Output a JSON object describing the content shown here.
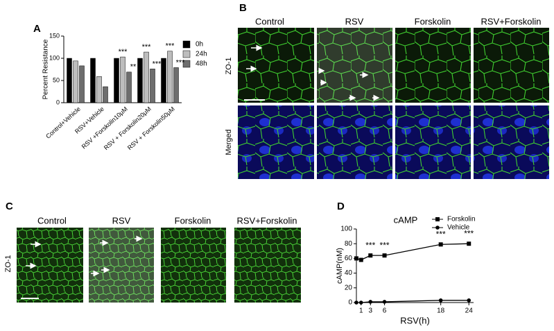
{
  "panels": {
    "a": "A",
    "b": "B",
    "c": "C",
    "d": "D"
  },
  "panel_b": {
    "columns": [
      "Control",
      "RSV",
      "Forskolin",
      "RSV+Forskolin"
    ],
    "rows": [
      "ZO-1",
      "Merged"
    ]
  },
  "panel_c": {
    "columns": [
      "Control",
      "RSV",
      "Forskolin",
      "RSV+Forskolin"
    ],
    "row": "ZO-1"
  },
  "chart_data": [
    {
      "type": "bar",
      "y_label": "Percent Resistance",
      "categories": [
        "Control+Vehicle",
        "RSV+Vehicle",
        "RSV +Forskolin10μM",
        "RSV + Forskolin20μM",
        "RSV + Forskolin50μM"
      ],
      "series": [
        {
          "name": "0h",
          "color": "#000000",
          "values": [
            100,
            100,
            100,
            100,
            100
          ]
        },
        {
          "name": "24h",
          "color": "#bdbdbd",
          "values": [
            94,
            59,
            103,
            114,
            116
          ]
        },
        {
          "name": "48h",
          "color": "#6e6e6e",
          "values": [
            83,
            36,
            69,
            76,
            79
          ]
        }
      ],
      "annotations": [
        {
          "text": "***",
          "category": "RSV +Forskolin10μM",
          "series": "24h"
        },
        {
          "text": "**",
          "category": "RSV +Forskolin10μM",
          "series": "48h"
        },
        {
          "text": "***",
          "category": "RSV + Forskolin20μM",
          "series": "24h"
        },
        {
          "text": "***",
          "category": "RSV + Forskolin20μM",
          "series": "48h"
        },
        {
          "text": "***",
          "category": "RSV + Forskolin50μM",
          "series": "24h"
        },
        {
          "text": "***",
          "category": "RSV + Forskolin50μM",
          "series": "48h"
        }
      ],
      "ylim": [
        0,
        150
      ],
      "yticks": [
        0,
        50,
        100,
        150
      ],
      "legend": "right"
    },
    {
      "type": "line",
      "title": "cAMP",
      "x_label": "RSV(h)",
      "y_label": "cAMP(nM)",
      "x": [
        0,
        1,
        3,
        6,
        18,
        24
      ],
      "series": [
        {
          "name": "Forskolin",
          "color": "#000000",
          "marker": "square",
          "values": [
            60,
            58,
            64,
            64,
            79,
            80
          ]
        },
        {
          "name": "Vehicle",
          "color": "#000000",
          "marker": "circle",
          "values": [
            0,
            0,
            1,
            1,
            3,
            3
          ]
        }
      ],
      "annotations": [
        {
          "text": "***",
          "x": 3,
          "series": "Forskolin"
        },
        {
          "text": "***",
          "x": 6,
          "series": "Forskolin"
        },
        {
          "text": "***",
          "x": 18,
          "series": "Forskolin"
        },
        {
          "text": "***",
          "x": 24,
          "series": "Forskolin"
        }
      ],
      "xlim": [
        0,
        25
      ],
      "ylim": [
        0,
        100
      ],
      "xticks": [
        1,
        3,
        6,
        18,
        24
      ],
      "yticks": [
        0,
        20,
        40,
        60,
        80,
        100
      ],
      "legend": "top-right"
    }
  ]
}
